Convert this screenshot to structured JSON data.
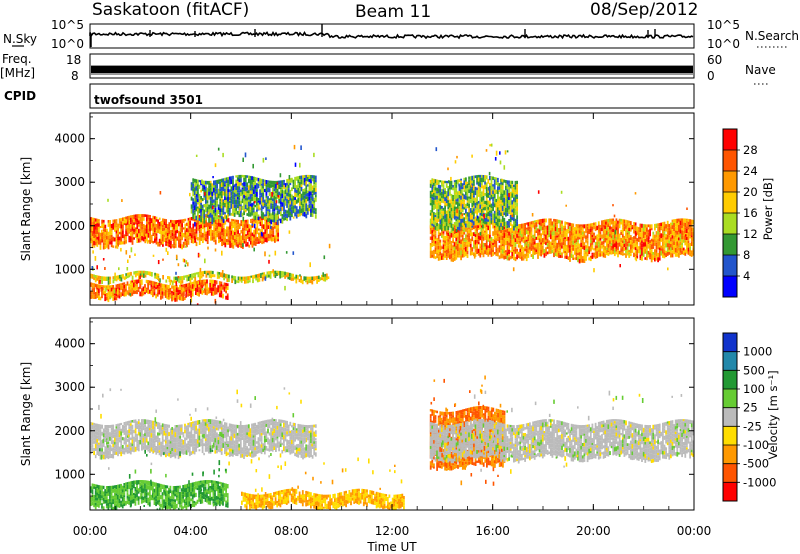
{
  "header": {
    "station": "Saskatoon (fitACF)",
    "beam": "Beam 11",
    "date": "08/Sep/2012"
  },
  "strip": {
    "nsky_label": "N.Sky",
    "nsky_ticks": [
      "10^5",
      "10^0"
    ],
    "nsearch_label": "N.Search",
    "nsearch_ticks": [
      "10^5",
      "10^0"
    ],
    "freq_label_line1": "Freq.",
    "freq_label_line2": "[MHz]",
    "freq_ticks": [
      "18",
      "8"
    ],
    "nave_label": "Nave",
    "nave_ticks": [
      "60",
      "0"
    ],
    "cpid_label": "CPID",
    "cpid_value": "twofsound 3501"
  },
  "axes": {
    "ylabel": "Slant Range [km]",
    "yticks": [
      "4000",
      "3000",
      "2000",
      "1000"
    ],
    "xlabel": "Time UT",
    "xticks": [
      "00:00",
      "04:00",
      "08:00",
      "12:00",
      "16:00",
      "20:00",
      "00:00"
    ]
  },
  "power_colorbar": {
    "label": "Power [dB]",
    "ticks": [
      "28",
      "24",
      "20",
      "16",
      "12",
      "8",
      "4"
    ],
    "colors": [
      "#ff0000",
      "#ff5500",
      "#ff9900",
      "#ffcc00",
      "#aadd22",
      "#339933",
      "#2255cc",
      "#0000ff"
    ]
  },
  "velocity_colorbar": {
    "label": "Velocity [m s⁻¹]",
    "ticks": [
      "1000",
      "500",
      "100",
      "25",
      "-25",
      "-100",
      "-500",
      "-1000"
    ],
    "colors": [
      "#1133cc",
      "#2288aa",
      "#229933",
      "#66cc33",
      "#bbbbbb",
      "#ffdd00",
      "#ff9900",
      "#ff5500",
      "#ff0000"
    ]
  },
  "chart_data": [
    {
      "type": "heatmap",
      "title": "",
      "xlabel": "Time UT",
      "ylabel": "Slant Range [km]",
      "xlim": [
        "00:00",
        "24:00"
      ],
      "ylim": [
        180,
        4590
      ],
      "colorbar": "Power [dB]",
      "bands": [
        {
          "from": "00:00",
          "to": "07:30",
          "range_start_km": 1600,
          "range_end_km": 2200,
          "power_db": 24
        },
        {
          "from": "04:00",
          "to": "09:00",
          "range_start_km": 2200,
          "range_end_km": 3100,
          "power_db": 10
        },
        {
          "from": "00:00",
          "to": "09:30",
          "range_start_km": 800,
          "range_end_km": 900,
          "power_db": 16
        },
        {
          "from": "00:00",
          "to": "05:30",
          "range_start_km": 400,
          "range_end_km": 700,
          "power_db": 24
        },
        {
          "from": "13:30",
          "to": "24:00",
          "range_start_km": 1300,
          "range_end_km": 2100,
          "power_db": 22
        },
        {
          "from": "13:30",
          "to": "17:00",
          "range_start_km": 2000,
          "range_end_km": 3100,
          "power_db": 12
        }
      ]
    },
    {
      "type": "heatmap",
      "title": "",
      "xlabel": "Time UT",
      "ylabel": "Slant Range [km]",
      "xlim": [
        "00:00",
        "24:00"
      ],
      "ylim": [
        180,
        4590
      ],
      "colorbar": "Velocity [m s⁻¹]",
      "bands": [
        {
          "from": "00:00",
          "to": "09:00",
          "range_start_km": 1500,
          "range_end_km": 2200,
          "velocity_ms": 0
        },
        {
          "from": "00:00",
          "to": "05:30",
          "range_start_km": 300,
          "range_end_km": 800,
          "velocity_ms": 100
        },
        {
          "from": "06:00",
          "to": "12:30",
          "range_start_km": 300,
          "range_end_km": 600,
          "velocity_ms": -100
        },
        {
          "from": "13:30",
          "to": "16:30",
          "range_start_km": 1200,
          "range_end_km": 2500,
          "velocity_ms": -500
        },
        {
          "from": "13:30",
          "to": "24:00",
          "range_start_km": 1400,
          "range_end_km": 2200,
          "velocity_ms": 0
        }
      ]
    }
  ]
}
